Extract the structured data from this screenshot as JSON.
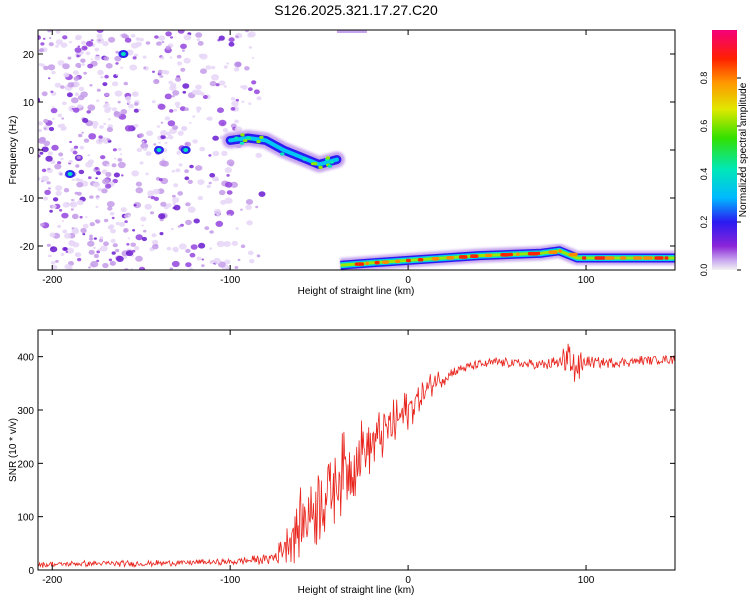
{
  "title": "S126.2025.321.17.27.C20",
  "chart_data": [
    {
      "type": "heatmap",
      "name": "spectrogram",
      "xlabel": "Height of straight line (km)",
      "ylabel": "Frequency (Hz)",
      "xlim": [
        -208,
        150
      ],
      "ylim": [
        -25,
        25
      ],
      "xticks": [
        -200,
        -100,
        0,
        100
      ],
      "yticks": [
        20,
        10,
        0,
        -10,
        -20
      ],
      "colorbar": {
        "label": "Normalized spectral amplitude",
        "range": [
          0,
          1
        ],
        "ticks": [
          "0.0",
          "0.2",
          "0.4",
          "0.6",
          "0.8"
        ]
      },
      "features": {
        "noise_region_x": [
          -208,
          -85
        ],
        "signal_track": [
          {
            "x": -100,
            "y": 2
          },
          {
            "x": -90,
            "y": 2.5
          },
          {
            "x": -80,
            "y": 2
          },
          {
            "x": -70,
            "y": 0
          },
          {
            "x": -60,
            "y": -1.5
          },
          {
            "x": -50,
            "y": -3
          },
          {
            "x": -40,
            "y": -2
          }
        ],
        "band_track": [
          {
            "x": -38,
            "y": -24
          },
          {
            "x": -20,
            "y": -23.5
          },
          {
            "x": 0,
            "y": -23
          },
          {
            "x": 40,
            "y": -22
          },
          {
            "x": 75,
            "y": -21.5
          },
          {
            "x": 85,
            "y": -21
          },
          {
            "x": 95,
            "y": -22.5
          },
          {
            "x": 150,
            "y": -22.5
          }
        ]
      }
    },
    {
      "type": "line",
      "name": "snr",
      "xlabel": "Height of straight line (km)",
      "ylabel": "SNR (10 * v/v)",
      "xlim": [
        -208,
        150
      ],
      "ylim": [
        0,
        450
      ],
      "xticks": [
        -200,
        -100,
        0,
        100
      ],
      "yticks": [
        0,
        100,
        200,
        300,
        400
      ],
      "series": [
        {
          "name": "SNR",
          "color": "#e8241c",
          "x": [
            -208,
            -180,
            -150,
            -120,
            -100,
            -90,
            -80,
            -75,
            -70,
            -65,
            -60,
            -55,
            -50,
            -45,
            -40,
            -35,
            -30,
            -25,
            -20,
            -15,
            -10,
            -5,
            0,
            5,
            10,
            15,
            20,
            25,
            30,
            40,
            50,
            60,
            70,
            80,
            85,
            90,
            95,
            100,
            110,
            120,
            130,
            140,
            150
          ],
          "y": [
            10,
            12,
            12,
            14,
            15,
            18,
            20,
            25,
            45,
            70,
            90,
            110,
            130,
            150,
            170,
            190,
            205,
            225,
            240,
            255,
            265,
            285,
            300,
            320,
            335,
            355,
            360,
            370,
            378,
            385,
            390,
            388,
            385,
            385,
            388,
            395,
            380,
            390,
            388,
            390,
            392,
            395,
            395
          ],
          "noise_amplitude": [
            6,
            6,
            6,
            6,
            6,
            8,
            10,
            20,
            40,
            60,
            70,
            80,
            85,
            85,
            80,
            75,
            70,
            65,
            60,
            55,
            50,
            45,
            40,
            35,
            28,
            22,
            15,
            12,
            10,
            10,
            10,
            10,
            10,
            12,
            20,
            35,
            40,
            12,
            10,
            10,
            10,
            10,
            10
          ]
        }
      ]
    }
  ]
}
